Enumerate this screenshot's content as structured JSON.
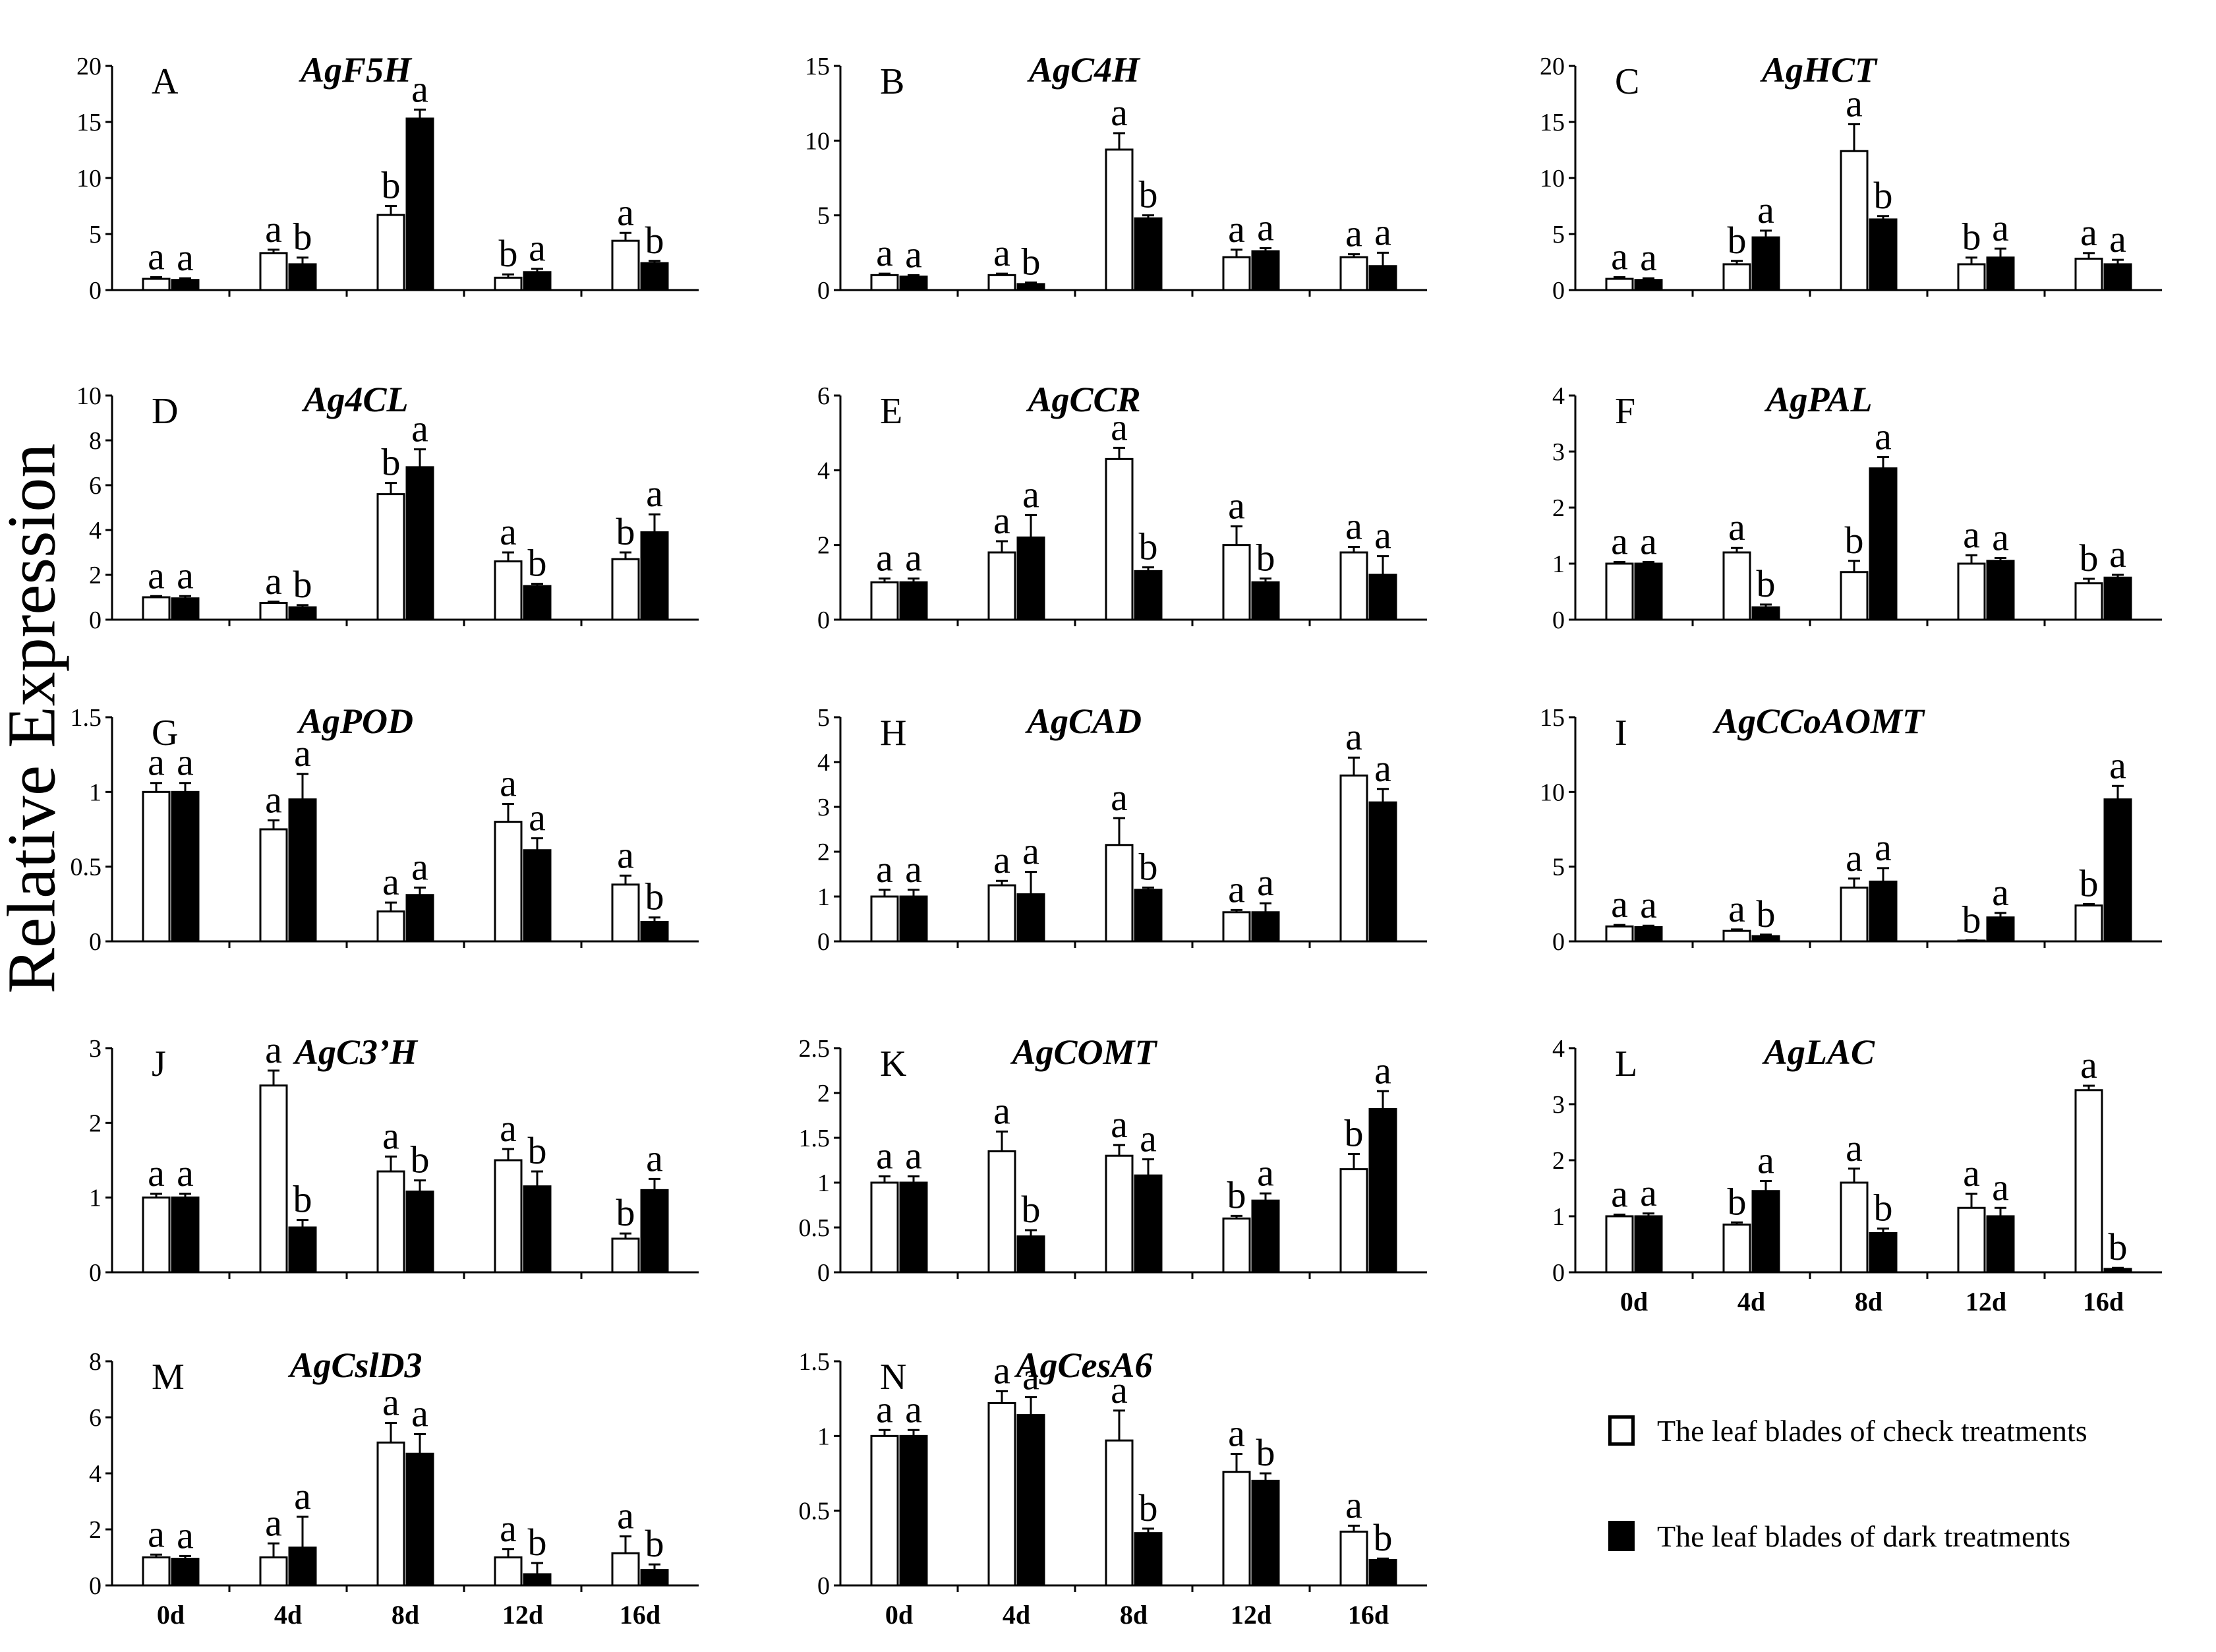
{
  "figure": {
    "y_axis_label": "Relative Expression",
    "legend": {
      "check": "The leaf blades of check treatments",
      "dark": "The leaf blades of dark treatments"
    },
    "colors": {
      "check": "#ffffff",
      "dark": "#000000",
      "stroke": "#000000"
    }
  },
  "chart_data": [
    {
      "panel": "A",
      "type": "bar",
      "title": "AgF5H",
      "categories": [
        "0d",
        "4d",
        "8d",
        "12d",
        "16d"
      ],
      "ylim": [
        0,
        20
      ],
      "yticks": [
        "0",
        "5",
        "10",
        "15",
        "20"
      ],
      "show_xticklabels": false,
      "series": [
        {
          "name": "The leaf blades of check treatments",
          "values": [
            1.0,
            3.3,
            6.7,
            1.1,
            4.4
          ],
          "errors": [
            0.15,
            0.3,
            0.8,
            0.3,
            0.7
          ],
          "letters": [
            "a",
            "a",
            "b",
            "b",
            "a"
          ]
        },
        {
          "name": "The leaf blades of dark treatments",
          "values": [
            0.9,
            2.3,
            15.3,
            1.6,
            2.4
          ],
          "errors": [
            0.15,
            0.6,
            0.8,
            0.3,
            0.2
          ],
          "letters": [
            "a",
            "b",
            "a",
            "a",
            "b"
          ]
        }
      ]
    },
    {
      "panel": "B",
      "type": "bar",
      "title": "AgC4H",
      "categories": [
        "0d",
        "4d",
        "8d",
        "12d",
        "16d"
      ],
      "ylim": [
        0,
        15
      ],
      "yticks": [
        "0",
        "5",
        "10",
        "15"
      ],
      "show_xticklabels": false,
      "series": [
        {
          "name": "The leaf blades of check treatments",
          "values": [
            1.0,
            1.0,
            9.4,
            2.2,
            2.2
          ],
          "errors": [
            0.1,
            0.1,
            1.1,
            0.5,
            0.2
          ],
          "letters": [
            "a",
            "a",
            "a",
            "a",
            "a"
          ]
        },
        {
          "name": "The leaf blades of dark treatments",
          "values": [
            0.9,
            0.4,
            4.8,
            2.6,
            1.6
          ],
          "errors": [
            0.1,
            0.1,
            0.2,
            0.2,
            0.9
          ],
          "letters": [
            "a",
            "b",
            "b",
            "a",
            "a"
          ]
        }
      ]
    },
    {
      "panel": "C",
      "type": "bar",
      "title": "AgHCT",
      "categories": [
        "0d",
        "4d",
        "8d",
        "12d",
        "16d"
      ],
      "ylim": [
        0,
        20
      ],
      "yticks": [
        "0",
        "5",
        "10",
        "15",
        "20"
      ],
      "show_xticklabels": false,
      "series": [
        {
          "name": "The leaf blades of check treatments",
          "values": [
            1.0,
            2.3,
            12.4,
            2.3,
            2.8
          ],
          "errors": [
            0.15,
            0.3,
            2.4,
            0.6,
            0.5
          ],
          "letters": [
            "a",
            "b",
            "a",
            "b",
            "a"
          ]
        },
        {
          "name": "The leaf blades of dark treatments",
          "values": [
            0.9,
            4.7,
            6.3,
            2.9,
            2.3
          ],
          "errors": [
            0.15,
            0.6,
            0.3,
            0.8,
            0.4
          ],
          "letters": [
            "a",
            "a",
            "b",
            "a",
            "a"
          ]
        }
      ]
    },
    {
      "panel": "D",
      "type": "bar",
      "title": "Ag4CL",
      "categories": [
        "0d",
        "4d",
        "8d",
        "12d",
        "16d"
      ],
      "ylim": [
        0,
        10
      ],
      "yticks": [
        "0",
        "2",
        "4",
        "6",
        "8",
        "10"
      ],
      "show_xticklabels": false,
      "series": [
        {
          "name": "The leaf blades of check treatments",
          "values": [
            1.0,
            0.75,
            5.6,
            2.6,
            2.7
          ],
          "errors": [
            0.05,
            0.05,
            0.5,
            0.4,
            0.3
          ],
          "letters": [
            "a",
            "a",
            "b",
            "a",
            "b"
          ]
        },
        {
          "name": "The leaf blades of dark treatments",
          "values": [
            0.95,
            0.55,
            6.8,
            1.5,
            3.9
          ],
          "errors": [
            0.1,
            0.1,
            0.8,
            0.1,
            0.8
          ],
          "letters": [
            "a",
            "b",
            "a",
            "b",
            "a"
          ]
        }
      ]
    },
    {
      "panel": "E",
      "type": "bar",
      "title": "AgCCR",
      "categories": [
        "0d",
        "4d",
        "8d",
        "12d",
        "16d"
      ],
      "ylim": [
        0,
        6
      ],
      "yticks": [
        "0",
        "2",
        "4",
        "6"
      ],
      "show_xticklabels": false,
      "series": [
        {
          "name": "The leaf blades of check treatments",
          "values": [
            1.0,
            1.8,
            4.3,
            2.0,
            1.8
          ],
          "errors": [
            0.1,
            0.3,
            0.3,
            0.5,
            0.15
          ],
          "letters": [
            "a",
            "a",
            "a",
            "a",
            "a"
          ]
        },
        {
          "name": "The leaf blades of dark treatments",
          "values": [
            1.0,
            2.2,
            1.3,
            1.0,
            1.2
          ],
          "errors": [
            0.1,
            0.6,
            0.1,
            0.1,
            0.5
          ],
          "letters": [
            "a",
            "a",
            "b",
            "b",
            "a"
          ]
        }
      ]
    },
    {
      "panel": "F",
      "type": "bar",
      "title": "AgPAL",
      "categories": [
        "0d",
        "4d",
        "8d",
        "12d",
        "16d"
      ],
      "ylim": [
        0,
        4
      ],
      "yticks": [
        "0",
        "1",
        "2",
        "3",
        "4"
      ],
      "show_xticklabels": false,
      "series": [
        {
          "name": "The leaf blades of check treatments",
          "values": [
            1.0,
            1.2,
            0.85,
            1.0,
            0.65
          ],
          "errors": [
            0.03,
            0.08,
            0.2,
            0.15,
            0.08
          ],
          "letters": [
            "a",
            "a",
            "b",
            "a",
            "b"
          ]
        },
        {
          "name": "The leaf blades of dark treatments",
          "values": [
            1.0,
            0.22,
            2.7,
            1.05,
            0.75
          ],
          "errors": [
            0.03,
            0.05,
            0.2,
            0.05,
            0.05
          ],
          "letters": [
            "a",
            "b",
            "a",
            "a",
            "a"
          ]
        }
      ]
    },
    {
      "panel": "G",
      "type": "bar",
      "title": "AgPOD",
      "categories": [
        "0d",
        "4d",
        "8d",
        "12d",
        "16d"
      ],
      "ylim": [
        0,
        1.5
      ],
      "yticks": [
        "0",
        "0.5",
        "1",
        "1.5"
      ],
      "show_xticklabels": false,
      "series": [
        {
          "name": "The leaf blades of check treatments",
          "values": [
            1.0,
            0.75,
            0.2,
            0.8,
            0.38
          ],
          "errors": [
            0.06,
            0.06,
            0.06,
            0.12,
            0.06
          ],
          "letters": [
            "a",
            "a",
            "a",
            "a",
            "a"
          ]
        },
        {
          "name": "The leaf blades of dark treatments",
          "values": [
            1.0,
            0.95,
            0.31,
            0.61,
            0.13
          ],
          "errors": [
            0.06,
            0.17,
            0.05,
            0.08,
            0.03
          ],
          "letters": [
            "a",
            "a",
            "a",
            "a",
            "b"
          ]
        }
      ]
    },
    {
      "panel": "H",
      "type": "bar",
      "title": "AgCAD",
      "categories": [
        "0d",
        "4d",
        "8d",
        "12d",
        "16d"
      ],
      "ylim": [
        0,
        5
      ],
      "yticks": [
        "0",
        "1",
        "2",
        "3",
        "4",
        "5"
      ],
      "show_xticklabels": false,
      "series": [
        {
          "name": "The leaf blades of check treatments",
          "values": [
            1.0,
            1.25,
            2.15,
            0.65,
            3.7
          ],
          "errors": [
            0.15,
            0.1,
            0.6,
            0.05,
            0.4
          ],
          "letters": [
            "a",
            "a",
            "a",
            "a",
            "a"
          ]
        },
        {
          "name": "The leaf blades of dark treatments",
          "values": [
            1.0,
            1.05,
            1.15,
            0.65,
            3.1
          ],
          "errors": [
            0.15,
            0.5,
            0.05,
            0.2,
            0.3
          ],
          "letters": [
            "a",
            "a",
            "b",
            "a",
            "a"
          ]
        }
      ]
    },
    {
      "panel": "I",
      "type": "bar",
      "title": "AgCCoAOMT",
      "categories": [
        "0d",
        "4d",
        "8d",
        "12d",
        "16d"
      ],
      "ylim": [
        0,
        15
      ],
      "yticks": [
        "0",
        "5",
        "10",
        "15"
      ],
      "show_xticklabels": false,
      "series": [
        {
          "name": "The leaf blades of check treatments",
          "values": [
            1.0,
            0.7,
            3.6,
            0.05,
            2.4
          ],
          "errors": [
            0.1,
            0.1,
            0.6,
            0.02,
            0.1
          ],
          "letters": [
            "a",
            "a",
            "a",
            "b",
            "b"
          ]
        },
        {
          "name": "The leaf blades of dark treatments",
          "values": [
            0.95,
            0.35,
            4.0,
            1.6,
            9.5
          ],
          "errors": [
            0.1,
            0.1,
            0.9,
            0.3,
            0.9
          ],
          "letters": [
            "a",
            "b",
            "a",
            "a",
            "a"
          ]
        }
      ]
    },
    {
      "panel": "J",
      "type": "bar",
      "title": "AgC3’H",
      "categories": [
        "0d",
        "4d",
        "8d",
        "12d",
        "16d"
      ],
      "ylim": [
        0,
        3
      ],
      "yticks": [
        "0",
        "1",
        "2",
        "3"
      ],
      "show_xticklabels": false,
      "series": [
        {
          "name": "The leaf blades of check treatments",
          "values": [
            1.0,
            2.5,
            1.35,
            1.5,
            0.45
          ],
          "errors": [
            0.05,
            0.2,
            0.2,
            0.15,
            0.07
          ],
          "letters": [
            "a",
            "a",
            "a",
            "a",
            "b"
          ]
        },
        {
          "name": "The leaf blades of dark treatments",
          "values": [
            1.0,
            0.6,
            1.08,
            1.15,
            1.1
          ],
          "errors": [
            0.05,
            0.1,
            0.15,
            0.2,
            0.15
          ],
          "letters": [
            "a",
            "b",
            "b",
            "b",
            "a"
          ]
        }
      ]
    },
    {
      "panel": "K",
      "type": "bar",
      "title": "AgCOMT",
      "categories": [
        "0d",
        "4d",
        "8d",
        "12d",
        "16d"
      ],
      "ylim": [
        0,
        2.5
      ],
      "yticks": [
        "0",
        "0.5",
        "1",
        "1.5",
        "2",
        "2.5"
      ],
      "show_xticklabels": false,
      "series": [
        {
          "name": "The leaf blades of check treatments",
          "values": [
            1.0,
            1.35,
            1.3,
            0.6,
            1.15
          ],
          "errors": [
            0.07,
            0.22,
            0.12,
            0.03,
            0.17
          ],
          "letters": [
            "a",
            "a",
            "a",
            "b",
            "b"
          ]
        },
        {
          "name": "The leaf blades of dark treatments",
          "values": [
            1.0,
            0.4,
            1.08,
            0.8,
            1.82
          ],
          "errors": [
            0.07,
            0.07,
            0.18,
            0.08,
            0.2
          ],
          "letters": [
            "a",
            "b",
            "a",
            "a",
            "a"
          ]
        }
      ]
    },
    {
      "panel": "L",
      "type": "bar",
      "title": "AgLAC",
      "categories": [
        "0d",
        "4d",
        "8d",
        "12d",
        "16d"
      ],
      "ylim": [
        0,
        4
      ],
      "yticks": [
        "0",
        "1",
        "2",
        "3",
        "4"
      ],
      "show_xticklabels": true,
      "series": [
        {
          "name": "The leaf blades of check treatments",
          "values": [
            1.0,
            0.85,
            1.6,
            1.15,
            3.25
          ],
          "errors": [
            0.03,
            0.04,
            0.25,
            0.25,
            0.08
          ],
          "letters": [
            "a",
            "b",
            "a",
            "a",
            "a"
          ]
        },
        {
          "name": "The leaf blades of dark treatments",
          "values": [
            1.0,
            1.45,
            0.7,
            1.0,
            0.06
          ],
          "errors": [
            0.05,
            0.18,
            0.08,
            0.15,
            0.02
          ],
          "letters": [
            "a",
            "a",
            "b",
            "a",
            "b"
          ]
        }
      ]
    },
    {
      "panel": "M",
      "type": "bar",
      "title": "AgCslD3",
      "categories": [
        "0d",
        "4d",
        "8d",
        "12d",
        "16d"
      ],
      "ylim": [
        0,
        8
      ],
      "yticks": [
        "0",
        "2",
        "4",
        "6",
        "8"
      ],
      "show_xticklabels": true,
      "series": [
        {
          "name": "The leaf blades of check treatments",
          "values": [
            1.0,
            1.0,
            5.1,
            1.0,
            1.15
          ],
          "errors": [
            0.1,
            0.5,
            0.7,
            0.3,
            0.6
          ],
          "letters": [
            "a",
            "a",
            "a",
            "a",
            "a"
          ]
        },
        {
          "name": "The leaf blades of dark treatments",
          "values": [
            0.95,
            1.35,
            4.7,
            0.4,
            0.55
          ],
          "errors": [
            0.1,
            1.1,
            0.7,
            0.4,
            0.2
          ],
          "letters": [
            "a",
            "a",
            "a",
            "b",
            "b"
          ]
        }
      ]
    },
    {
      "panel": "N",
      "type": "bar",
      "title": "AgCesA6",
      "categories": [
        "0d",
        "4d",
        "8d",
        "12d",
        "16d"
      ],
      "ylim": [
        0,
        1.5
      ],
      "yticks": [
        "0",
        "0.5",
        "1",
        "1.5"
      ],
      "show_xticklabels": true,
      "series": [
        {
          "name": "The leaf blades of check treatments",
          "values": [
            1.0,
            1.22,
            0.97,
            0.76,
            0.36
          ],
          "errors": [
            0.04,
            0.08,
            0.2,
            0.12,
            0.04
          ],
          "letters": [
            "a",
            "a",
            "a",
            "a",
            "a"
          ]
        },
        {
          "name": "The leaf blades of dark treatments",
          "values": [
            1.0,
            1.14,
            0.35,
            0.7,
            0.17
          ],
          "errors": [
            0.04,
            0.12,
            0.03,
            0.05,
            0.01
          ],
          "letters": [
            "a",
            "a",
            "b",
            "b",
            "b"
          ]
        }
      ]
    }
  ]
}
